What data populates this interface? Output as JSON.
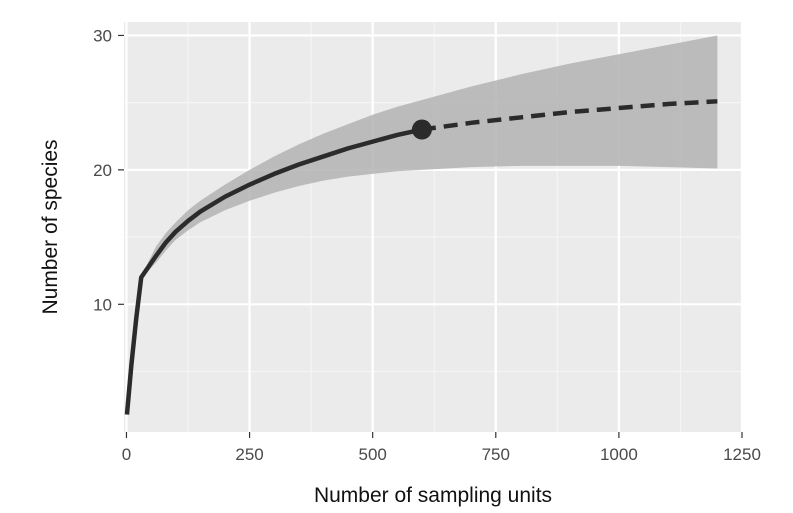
{
  "chart_data": {
    "type": "line",
    "title": "",
    "xlabel": "Number of sampling units",
    "ylabel": "Number of species",
    "xlim": [
      -5,
      1250
    ],
    "ylim": [
      0.5,
      31
    ],
    "xticks": [
      0,
      250,
      500,
      750,
      1000,
      1250
    ],
    "yticks": [
      10,
      20,
      30
    ],
    "xtick_labels": [
      "0",
      "250",
      "500",
      "750",
      "1000",
      "1250"
    ],
    "ytick_labels": [
      "10",
      "20",
      "30"
    ],
    "grid": true,
    "legend": "none",
    "colors": {
      "panel": "#ebebeb",
      "grid_major": "#ffffff",
      "grid_minor": "#f5f5f5",
      "band": "#b3b3b3",
      "line": "#2b2b2b"
    },
    "series": [
      {
        "style": "solid",
        "x": [
          1,
          10,
          20,
          30,
          45,
          60,
          80,
          100,
          125,
          150,
          200,
          250,
          300,
          350,
          400,
          450,
          500,
          550,
          600
        ],
        "y": [
          1.8,
          5.5,
          9.0,
          12.0,
          12.8,
          13.6,
          14.6,
          15.4,
          16.2,
          16.9,
          18.0,
          18.9,
          19.7,
          20.4,
          21.0,
          21.6,
          22.1,
          22.6,
          23.0
        ]
      },
      {
        "style": "dashed",
        "x": [
          600,
          700,
          800,
          900,
          1000,
          1100,
          1200
        ],
        "y": [
          23.0,
          23.5,
          23.9,
          24.3,
          24.6,
          24.9,
          25.1
        ]
      }
    ],
    "band": {
      "x": [
        30,
        45,
        60,
        80,
        100,
        125,
        150,
        200,
        250,
        300,
        350,
        400,
        450,
        500,
        550,
        600,
        700,
        800,
        900,
        1000,
        1100,
        1200
      ],
      "lower": [
        12.0,
        12.5,
        13.1,
        14.0,
        14.8,
        15.5,
        16.1,
        17.0,
        17.7,
        18.3,
        18.8,
        19.2,
        19.5,
        19.7,
        19.9,
        20.0,
        20.2,
        20.3,
        20.3,
        20.3,
        20.2,
        20.1
      ],
      "upper": [
        12.0,
        13.2,
        14.3,
        15.3,
        16.1,
        17.0,
        17.7,
        18.9,
        20.0,
        21.0,
        21.9,
        22.7,
        23.4,
        24.1,
        24.7,
        25.2,
        26.2,
        27.1,
        27.9,
        28.6,
        29.3,
        30.0
      ]
    },
    "marker": {
      "x": 600,
      "y": 23.0
    }
  }
}
